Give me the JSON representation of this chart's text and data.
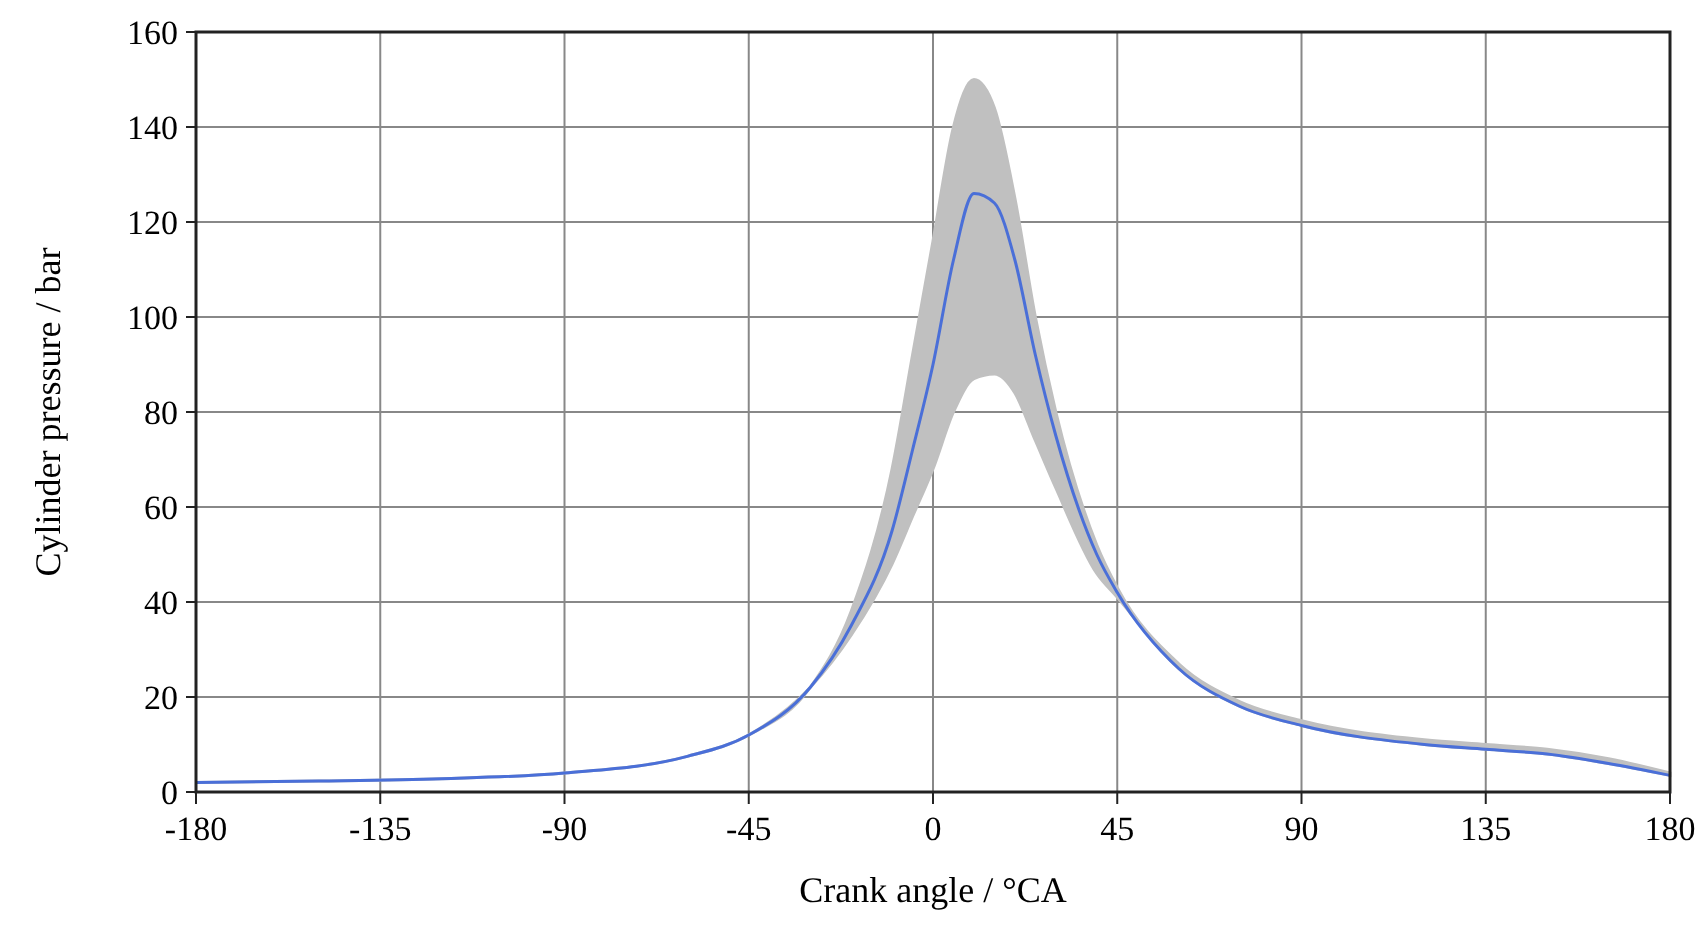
{
  "chart_data": {
    "type": "line",
    "xlabel": "Crank angle / °CA",
    "ylabel": "Cylinder pressure / bar",
    "x": [
      -180,
      -150,
      -120,
      -90,
      -60,
      -45,
      -30,
      -20,
      -10,
      -5,
      0,
      5,
      10,
      15,
      20,
      25,
      30,
      40,
      45,
      60,
      75,
      90,
      120,
      135,
      150,
      165,
      180
    ],
    "series": [
      {
        "color": "#4a6fd8",
        "values": [
          2,
          2.3,
          2.8,
          4,
          7.5,
          12,
          22,
          35,
          55,
          72,
          90,
          112,
          126,
          124,
          112,
          92,
          75,
          50,
          42,
          26,
          18,
          14,
          10,
          9,
          8,
          6,
          3.5
        ],
        "lower": [
          2,
          2.3,
          2.8,
          4,
          7.5,
          12,
          22,
          33,
          48,
          58,
          68,
          80,
          87,
          88,
          84,
          74,
          64,
          46,
          41,
          26,
          18,
          14,
          10,
          9,
          8,
          6,
          3.5
        ],
        "upper": [
          2,
          2.3,
          2.8,
          4,
          7.5,
          12,
          22,
          38,
          68,
          92,
          116,
          140,
          150,
          144,
          125,
          100,
          80,
          52,
          43,
          27,
          19,
          15,
          11,
          10,
          9,
          7,
          4
        ]
      }
    ],
    "xlim": [
      -180,
      180
    ],
    "xticks": [
      -180,
      -135,
      -90,
      -45,
      0,
      45,
      90,
      135,
      180
    ],
    "ylim": [
      0,
      160
    ],
    "yticks": [
      0,
      20,
      40,
      60,
      80,
      100,
      120,
      140,
      160
    ],
    "grid": true,
    "marker": "none",
    "line_style": "solid"
  }
}
